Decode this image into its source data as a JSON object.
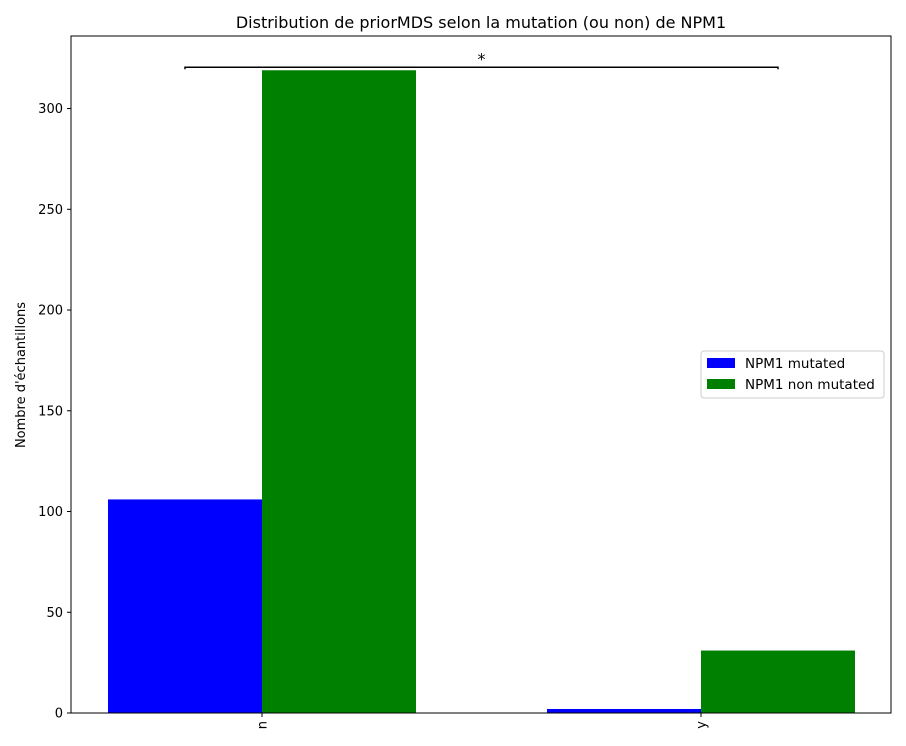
{
  "chart_data": {
    "type": "bar",
    "title": "Distribution de priorMDS selon la mutation (ou non) de NPM1",
    "xlabel": "",
    "ylabel": "Nombre d'échantillons",
    "categories": [
      "n",
      "y"
    ],
    "series": [
      {
        "name": "NPM1 mutated",
        "color": "#0000ff",
        "values": [
          106,
          2
        ]
      },
      {
        "name": "NPM1 non mutated",
        "color": "#008000",
        "values": [
          319,
          31
        ]
      }
    ],
    "ylim": [
      0,
      336
    ],
    "yticks": [
      0,
      50,
      100,
      150,
      200,
      250,
      300
    ],
    "ytick_labels": [
      "0",
      "50",
      "100",
      "150",
      "200",
      "250",
      "300"
    ],
    "legend_position": "center-right",
    "grid": false,
    "annotation": {
      "text": "*",
      "between": [
        "n",
        "y"
      ]
    }
  }
}
